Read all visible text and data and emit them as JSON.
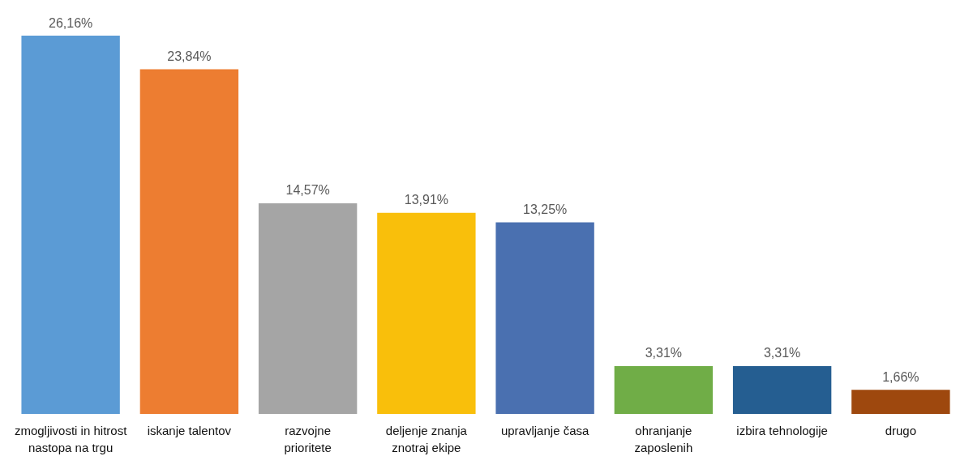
{
  "chart_data": {
    "type": "bar",
    "categories": [
      "zmogljivosti in hitrost\nnastopa na trgu",
      "iskanje talentov",
      "razvojne\nprioritete",
      "deljenje znanja\nznotraj ekipe",
      "upravljanje časa",
      "ohranjanje\nzaposlenih",
      "izbira tehnologije",
      "drugo"
    ],
    "values": [
      26.16,
      23.84,
      14.57,
      13.91,
      13.25,
      3.31,
      3.31,
      1.66
    ],
    "value_labels": [
      "26,16%",
      "23,84%",
      "14,57%",
      "13,91%",
      "13,25%",
      "3,31%",
      "3,31%",
      "1,66%"
    ],
    "colors": [
      "#5b9bd5",
      "#ed7d31",
      "#a5a5a5",
      "#f9bf0b",
      "#4a70b0",
      "#70ad47",
      "#255e91",
      "#9e480e"
    ]
  }
}
